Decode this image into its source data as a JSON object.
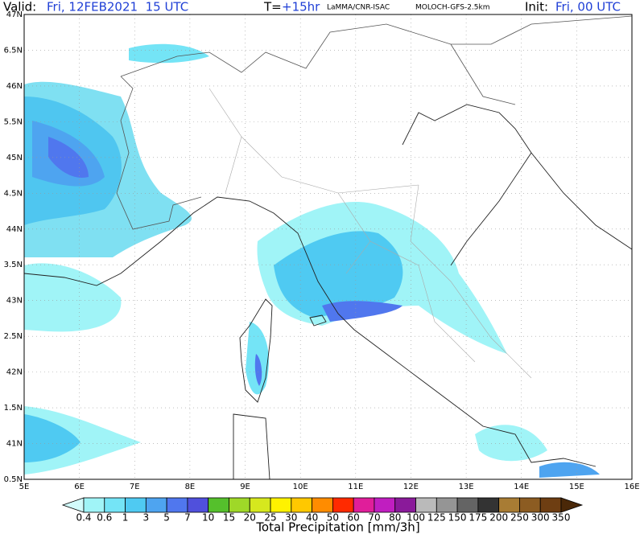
{
  "header": {
    "valid_label": "Valid:",
    "valid_time": "Fri, 12FEB2021  15 UTC",
    "lead_label": "T=",
    "lead_time": "+15hr",
    "institute": "LaMMA/CNR-ISAC",
    "model": "MOLOCH-GFS-2.5km",
    "init_label": "Init:",
    "init_time": "Fri, 00 UTC"
  },
  "map": {
    "lat_labels": [
      "47N",
      "6.5N",
      "46N",
      "5.5N",
      "45N",
      "4.5N",
      "44N",
      "3.5N",
      "43N",
      "2.5N",
      "42N",
      "1.5N",
      "41N",
      "0.5N"
    ],
    "lon_labels": [
      "5E",
      "6E",
      "7E",
      "8E",
      "9E",
      "10E",
      "11E",
      "12E",
      "13E",
      "14E",
      "15E",
      "16E"
    ]
  },
  "colorbar": {
    "title": "Total Precipitation [mm/3h]",
    "levels": [
      0.4,
      0.6,
      1,
      3,
      5,
      7,
      10,
      15,
      20,
      25,
      30,
      40,
      50,
      60,
      70,
      80,
      100,
      125,
      150,
      175,
      200,
      250,
      300,
      350
    ],
    "colors": [
      "#d2fbfb",
      "#a0f4f7",
      "#74e4f6",
      "#4fcaf2",
      "#4ea4f0",
      "#5077ee",
      "#5050dc",
      "#55c02c",
      "#9fd828",
      "#d6e81e",
      "#fff200",
      "#ffc800",
      "#ff8c00",
      "#ff2a00",
      "#e01e9a",
      "#c01ec0",
      "#8a1a9a",
      "#bababa",
      "#959595",
      "#646464",
      "#333333",
      "#a87c34",
      "#8c5c22",
      "#6e3e12",
      "#4a2808"
    ]
  }
}
